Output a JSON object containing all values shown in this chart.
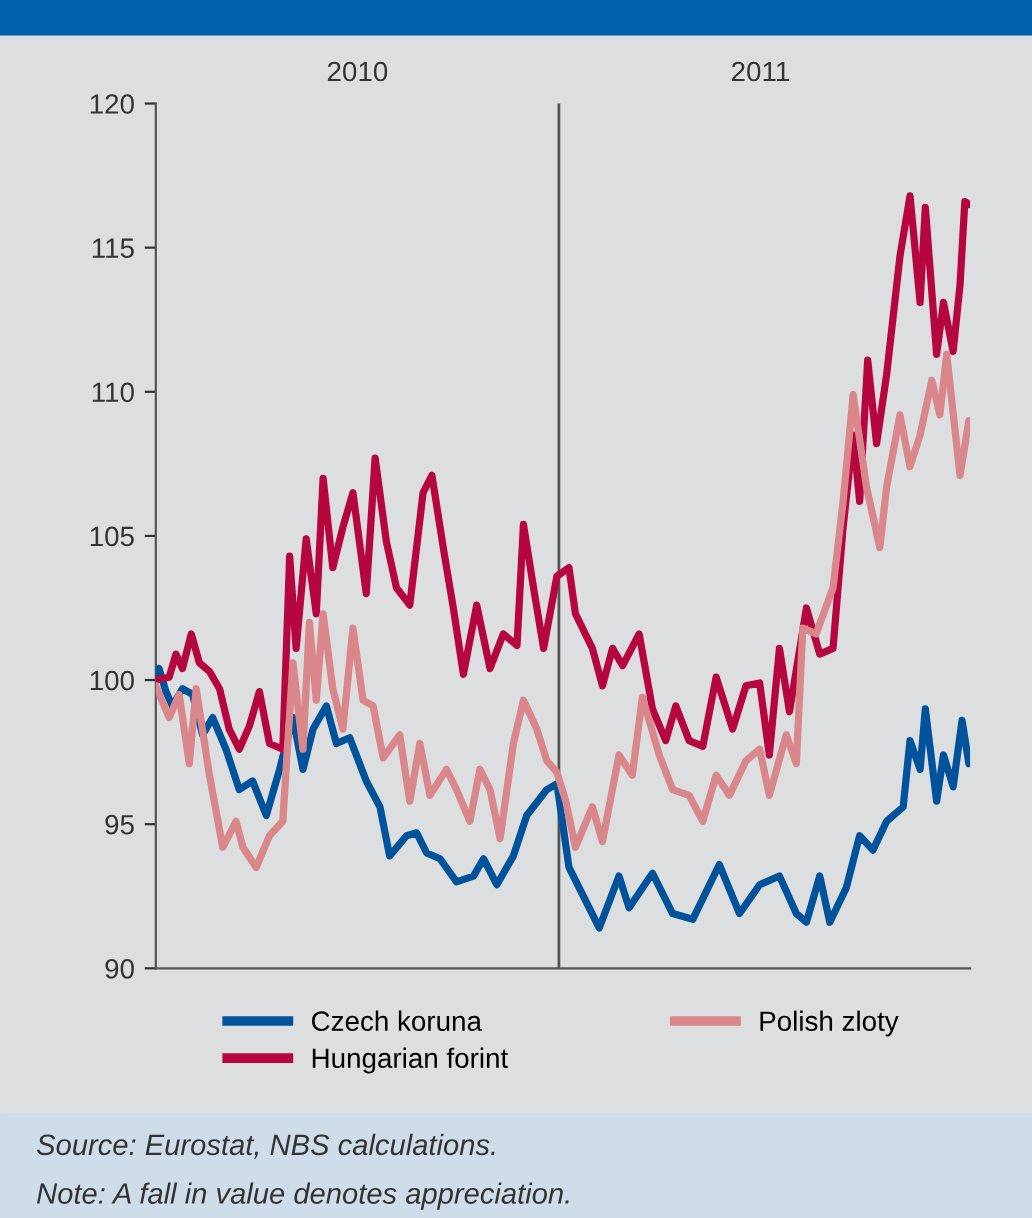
{
  "chart_data": {
    "type": "line",
    "xlim": [
      2010,
      2012.02
    ],
    "xticks": [
      {
        "value": 2010.5,
        "label": "2010"
      },
      {
        "value": 2011.5,
        "label": "2011"
      }
    ],
    "ylim": [
      90,
      120
    ],
    "yticks": [
      90,
      95,
      100,
      105,
      110,
      115,
      120
    ],
    "grid": false,
    "legend": "bottom",
    "marker": "none",
    "line_style": "solid",
    "ref_lines": [
      {
        "axis": "x",
        "value": 2011.0,
        "color": "#555555"
      }
    ],
    "annotations": [
      "Source: Eurostat, NBS calculations.",
      "Note: A fall in value denotes appreciation."
    ],
    "series": [
      {
        "name": "Czech koruna",
        "color": "#00529b",
        "x": [
          2010.0,
          2010.008,
          2010.025,
          2010.041,
          2010.066,
          2010.091,
          2010.116,
          2010.141,
          2010.174,
          2010.207,
          2010.24,
          2010.274,
          2010.307,
          2010.34,
          2010.365,
          2010.39,
          2010.423,
          2010.448,
          2010.481,
          2010.522,
          2010.556,
          2010.58,
          2010.622,
          2010.647,
          2010.672,
          2010.705,
          2010.746,
          2010.788,
          2010.813,
          2010.846,
          2010.887,
          2010.92,
          2010.97,
          2010.995,
          2011.025,
          2011.05,
          2011.1,
          2011.149,
          2011.174,
          2011.232,
          2011.282,
          2011.332,
          2011.398,
          2011.448,
          2011.498,
          2011.547,
          2011.589,
          2011.614,
          2011.647,
          2011.672,
          2011.713,
          2011.746,
          2011.779,
          2011.813,
          2011.854,
          2011.871,
          2011.896,
          2011.909,
          2011.937,
          2011.954,
          2011.978,
          2012.0,
          2012.017
        ],
        "values": [
          100,
          100.4,
          99.6,
          99.1,
          99.7,
          99.5,
          98.1,
          98.7,
          97.6,
          96.2,
          96.5,
          95.3,
          96.9,
          98.7,
          96.9,
          98.3,
          99.1,
          97.8,
          98.0,
          96.5,
          95.6,
          93.9,
          94.6,
          94.7,
          94.0,
          93.8,
          93.0,
          93.2,
          93.8,
          92.9,
          93.9,
          95.3,
          96.2,
          96.4,
          93.5,
          92.8,
          91.4,
          93.2,
          92.1,
          93.3,
          91.9,
          91.7,
          93.6,
          91.9,
          92.9,
          93.2,
          91.9,
          91.6,
          93.2,
          91.6,
          92.8,
          94.6,
          94.1,
          95.1,
          95.6,
          97.9,
          96.9,
          99.0,
          95.8,
          97.4,
          96.3,
          98.6,
          97.1
        ]
      },
      {
        "name": "Hungarian forint",
        "color": "#b5063f",
        "x": [
          2010.0,
          2010.033,
          2010.05,
          2010.066,
          2010.088,
          2010.108,
          2010.133,
          2010.158,
          2010.182,
          2010.207,
          2010.232,
          2010.257,
          2010.282,
          2010.315,
          2010.332,
          2010.348,
          2010.373,
          2010.398,
          2010.415,
          2010.439,
          2010.464,
          2010.489,
          2010.522,
          2010.544,
          2010.572,
          2010.597,
          2010.63,
          2010.663,
          2010.685,
          2010.713,
          2010.738,
          2010.763,
          2010.796,
          2010.829,
          2010.862,
          2010.896,
          2010.912,
          2010.937,
          2010.962,
          2010.995,
          2011.025,
          2011.041,
          2011.083,
          2011.108,
          2011.133,
          2011.158,
          2011.199,
          2011.232,
          2011.265,
          2011.29,
          2011.323,
          2011.357,
          2011.39,
          2011.431,
          2011.464,
          2011.498,
          2011.522,
          2011.547,
          2011.572,
          2011.614,
          2011.647,
          2011.68,
          2011.705,
          2011.73,
          2011.746,
          2011.766,
          2011.788,
          2011.813,
          2011.846,
          2011.871,
          2011.896,
          2011.909,
          2011.937,
          2011.954,
          2011.978,
          2011.995,
          2012.007,
          2012.017
        ],
        "values": [
          100,
          100.1,
          100.9,
          100.4,
          101.6,
          100.6,
          100.3,
          99.7,
          98.3,
          97.6,
          98.4,
          99.6,
          97.8,
          97.6,
          104.3,
          101.1,
          104.9,
          102.3,
          107.0,
          103.9,
          105.3,
          106.5,
          103.0,
          107.7,
          104.8,
          103.2,
          102.6,
          106.5,
          107.1,
          104.6,
          102.5,
          100.2,
          102.6,
          100.4,
          101.6,
          101.2,
          105.4,
          103.2,
          101.1,
          103.6,
          103.9,
          102.3,
          101.1,
          99.8,
          101.1,
          100.5,
          101.6,
          99.0,
          97.9,
          99.1,
          97.9,
          97.7,
          100.1,
          98.3,
          99.8,
          99.9,
          97.4,
          101.1,
          98.9,
          102.5,
          100.9,
          101.1,
          105.3,
          108.5,
          106.2,
          111.1,
          108.2,
          110.6,
          114.7,
          116.8,
          113.1,
          116.4,
          111.3,
          113.1,
          111.4,
          113.7,
          116.6,
          116.5
        ]
      },
      {
        "name": "Polish zloty",
        "color": "#d9878a",
        "x": [
          2010.0,
          2010.033,
          2010.058,
          2010.083,
          2010.1,
          2010.133,
          2010.166,
          2010.199,
          2010.216,
          2010.249,
          2010.282,
          2010.315,
          2010.34,
          2010.365,
          2010.381,
          2010.398,
          2010.415,
          2010.439,
          2010.464,
          2010.489,
          2010.514,
          2010.539,
          2010.564,
          2010.605,
          2010.63,
          2010.655,
          2010.68,
          2010.721,
          2010.746,
          2010.779,
          2010.804,
          2010.829,
          2010.854,
          2010.887,
          2010.912,
          2010.945,
          2010.97,
          2010.995,
          2011.017,
          2011.041,
          2011.083,
          2011.108,
          2011.149,
          2011.182,
          2011.207,
          2011.249,
          2011.282,
          2011.323,
          2011.357,
          2011.39,
          2011.423,
          2011.464,
          2011.498,
          2011.522,
          2011.564,
          2011.589,
          2011.605,
          2011.638,
          2011.68,
          2011.705,
          2011.73,
          2011.763,
          2011.796,
          2011.813,
          2011.846,
          2011.871,
          2011.896,
          2011.925,
          2011.945,
          2011.962,
          2011.995,
          2012.017
        ],
        "values": [
          99.8,
          98.7,
          99.5,
          97.1,
          99.7,
          96.7,
          94.2,
          95.1,
          94.2,
          93.5,
          94.6,
          95.1,
          100.6,
          97.6,
          102.0,
          99.3,
          102.3,
          99.7,
          98.3,
          101.8,
          99.3,
          99.1,
          97.3,
          98.1,
          95.8,
          97.8,
          96.0,
          96.9,
          96.2,
          95.1,
          96.9,
          96.2,
          94.5,
          97.8,
          99.3,
          98.3,
          97.2,
          96.8,
          95.8,
          94.2,
          95.6,
          94.4,
          97.4,
          96.7,
          99.4,
          97.4,
          96.2,
          96.0,
          95.1,
          96.7,
          96.0,
          97.2,
          97.6,
          96.0,
          98.1,
          97.1,
          101.8,
          101.6,
          103.2,
          106.2,
          109.9,
          106.7,
          104.6,
          106.7,
          109.2,
          107.4,
          108.5,
          110.4,
          109.2,
          111.3,
          107.1,
          109.0
        ]
      }
    ]
  }
}
